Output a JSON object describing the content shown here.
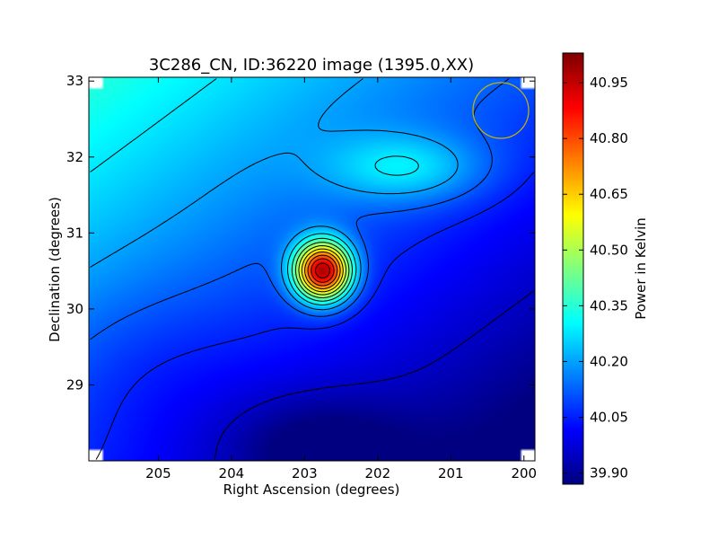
{
  "figure": {
    "title": "3C286_CN, ID:36220 image (1395.0,XX)"
  },
  "chart_data": {
    "type": "heatmap",
    "title": "3C286_CN, ID:36220 image (1395.0,XX)",
    "xlabel": "Right Ascension (degrees)",
    "ylabel": "Declination (degrees)",
    "xlim": [
      205.95,
      199.85
    ],
    "ylim": [
      28.0,
      33.05
    ],
    "x_ticks": [
      205,
      204,
      203,
      202,
      201,
      200
    ],
    "y_ticks": [
      29,
      30,
      31,
      32,
      33
    ],
    "colormap": "jet",
    "colorbar": {
      "label": "Power in Kelvin",
      "range": [
        39.87,
        41.03
      ],
      "ticks": [
        "39.90",
        "40.05",
        "40.20",
        "40.35",
        "40.50",
        "40.65",
        "40.80",
        "40.95"
      ]
    },
    "features": [
      {
        "kind": "peak",
        "ra": 202.75,
        "dec": 30.5,
        "value": 41.0
      },
      {
        "kind": "secondary_maximum",
        "ra": 201.6,
        "dec": 31.85,
        "value": 40.48
      },
      {
        "kind": "minimum",
        "ra": 202.9,
        "dec": 28.2,
        "value": 39.9
      },
      {
        "kind": "beam_circle",
        "ra": 200.3,
        "dec": 32.6
      }
    ],
    "contour_levels": [
      39.95,
      40.05,
      40.12,
      40.2,
      40.28,
      40.36,
      40.44,
      40.52,
      40.6,
      40.68,
      40.76,
      40.84,
      40.92,
      41.0
    ],
    "grid": false,
    "legend": "none",
    "colors": {
      "beam_circle": "#c8b400",
      "contours": "#000000"
    }
  }
}
